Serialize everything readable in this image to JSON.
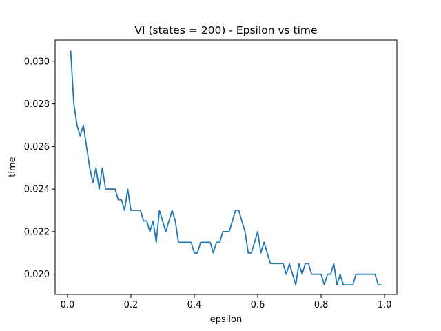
{
  "chart_data": {
    "type": "line",
    "title": "VI (states = 200) - Epsilon vs time",
    "xlabel": "epsilon",
    "ylabel": "time",
    "xlim": [
      -0.039,
      1.039
    ],
    "ylim": [
      0.01905,
      0.031
    ],
    "xticks": [
      0.0,
      0.2,
      0.4,
      0.6,
      0.8,
      1.0
    ],
    "xtick_labels": [
      "0.0",
      "0.2",
      "0.4",
      "0.6",
      "0.8",
      "1.0"
    ],
    "yticks": [
      0.02,
      0.022,
      0.024,
      0.026,
      0.028,
      0.03
    ],
    "ytick_labels": [
      "0.020",
      "0.022",
      "0.024",
      "0.026",
      "0.028",
      "0.030"
    ],
    "grid": false,
    "line_color": "#1f77b4",
    "series": [
      {
        "x": [
          0.01,
          0.02,
          0.03,
          0.04,
          0.05,
          0.06,
          0.07,
          0.08,
          0.09,
          0.1,
          0.11,
          0.12,
          0.13,
          0.14,
          0.15,
          0.16,
          0.17,
          0.18,
          0.19,
          0.2,
          0.21,
          0.22,
          0.23,
          0.24,
          0.25,
          0.26,
          0.27,
          0.28,
          0.29,
          0.3,
          0.31,
          0.32,
          0.33,
          0.34,
          0.35,
          0.36,
          0.37,
          0.38,
          0.39,
          0.4,
          0.41,
          0.42,
          0.43,
          0.44,
          0.45,
          0.46,
          0.47,
          0.48,
          0.49,
          0.5,
          0.51,
          0.52,
          0.53,
          0.54,
          0.55,
          0.56,
          0.57,
          0.58,
          0.59,
          0.6,
          0.61,
          0.62,
          0.63,
          0.64,
          0.65,
          0.66,
          0.67,
          0.68,
          0.69,
          0.7,
          0.71,
          0.72,
          0.73,
          0.74,
          0.75,
          0.76,
          0.77,
          0.78,
          0.79,
          0.8,
          0.81,
          0.82,
          0.83,
          0.84,
          0.85,
          0.86,
          0.87,
          0.88,
          0.89,
          0.9,
          0.91,
          0.92,
          0.93,
          0.94,
          0.95,
          0.96,
          0.97,
          0.98,
          0.99
        ],
        "y": [
          0.0305,
          0.028,
          0.027,
          0.0265,
          0.027,
          0.026,
          0.025,
          0.0243,
          0.025,
          0.024,
          0.025,
          0.024,
          0.024,
          0.024,
          0.024,
          0.0235,
          0.0235,
          0.023,
          0.024,
          0.023,
          0.023,
          0.023,
          0.023,
          0.0225,
          0.0225,
          0.022,
          0.0225,
          0.0215,
          0.023,
          0.0225,
          0.022,
          0.0225,
          0.023,
          0.0225,
          0.0215,
          0.0215,
          0.0215,
          0.0215,
          0.0215,
          0.021,
          0.021,
          0.0215,
          0.0215,
          0.0215,
          0.0215,
          0.021,
          0.0215,
          0.0215,
          0.022,
          0.022,
          0.022,
          0.0225,
          0.023,
          0.023,
          0.0225,
          0.022,
          0.021,
          0.021,
          0.0215,
          0.022,
          0.021,
          0.0215,
          0.021,
          0.0205,
          0.0205,
          0.0205,
          0.0205,
          0.0205,
          0.02,
          0.0205,
          0.02,
          0.0195,
          0.0205,
          0.02,
          0.0205,
          0.0205,
          0.02,
          0.02,
          0.02,
          0.02,
          0.0195,
          0.02,
          0.02,
          0.0205,
          0.0195,
          0.02,
          0.0195,
          0.0195,
          0.0195,
          0.0195,
          0.02,
          0.02,
          0.02,
          0.02,
          0.02,
          0.02,
          0.02,
          0.0195,
          0.0195
        ]
      }
    ]
  }
}
